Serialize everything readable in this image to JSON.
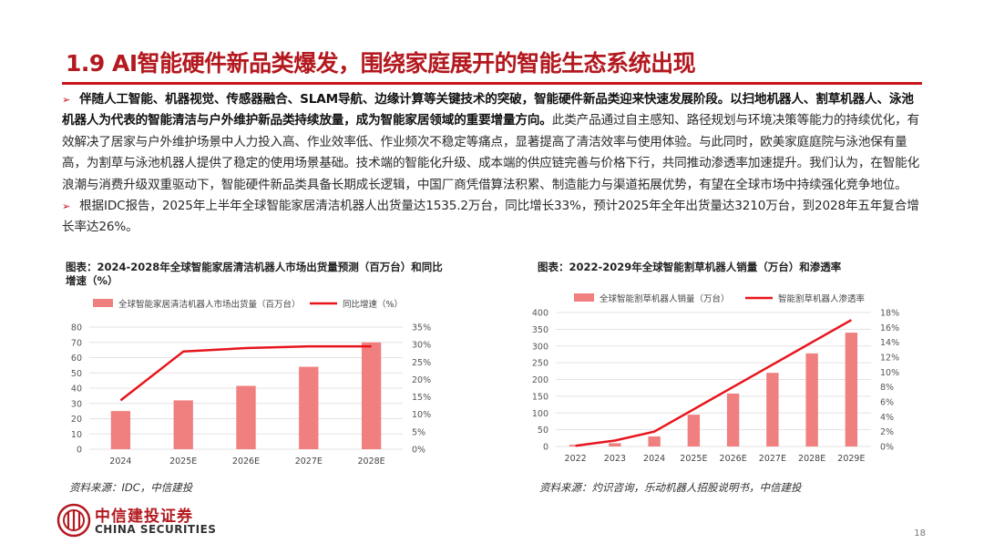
{
  "slide": {
    "title": "1.9 AI智能硬件新品类爆发，围绕家庭展开的智能生态系统出现",
    "page_number": "18",
    "accent_color": "#c8141b"
  },
  "bullets": [
    {
      "marker": "➢",
      "bold": "伴随人工智能、机器视觉、传感器融合、SLAM导航、边缘计算等关键技术的突破，智能硬件新品类迎来快速发展阶段。以扫地机器人、割草机器人、泳池机器人为代表的智能清洁与户外维护新品类持续放量，成为智能家居领域的重要增量方向。",
      "text": "此类产品通过自主感知、路径规划与环境决策等能力的持续优化，有效解决了居家与户外维护场景中人力投入高、作业效率低、作业频次不稳定等痛点，显著提高了清洁效率与使用体验。与此同时，欧美家庭庭院与泳池保有量高，为割草与泳池机器人提供了稳定的使用场景基础。技术端的智能化升级、成本端的供应链完善与价格下行，共同推动渗透率加速提升。我们认为，在智能化浪潮与消费升级双重驱动下，智能硬件新品类具备长期成长逻辑，中国厂商凭借算法积累、制造能力与渠道拓展优势，有望在全球市场中持续强化竞争地位。"
    },
    {
      "marker": "➢",
      "bold": "",
      "text": "根据IDC报告，2025年上半年全球智能家居清洁机器人出货量达1535.2万台，同比增长33%，预计2025年全年出货量达3210万台，到2028年五年复合增长率达26%。"
    }
  ],
  "chart_left_caption": {
    "title": "图表：2024-2028年全球智能家居清洁机器人市场出货量预测（百万台）和同比增速（%）",
    "source": "资料来源：IDC，中信建投"
  },
  "chart_right_caption": {
    "title": "图表：2022-2029年全球智能割草机器人销量（万台）和渗透率",
    "source": "资料来源：灼识咨询，乐动机器人招股说明书，中信建投"
  },
  "chart_data": [
    {
      "type": "bar",
      "title": "2024-2028年全球智能家居清洁机器人市场出货量预测（百万台）和同比增速（%）",
      "categories": [
        "2024",
        "2025E",
        "2026E",
        "2027E",
        "2028E"
      ],
      "series": [
        {
          "name": "全球智能家居清洁机器人市场出货量（百万台）",
          "kind": "bar",
          "axis": "left",
          "color": "#f08080",
          "values": [
            25,
            32,
            41.5,
            54,
            70
          ]
        },
        {
          "name": "同比增速（%）",
          "kind": "line",
          "axis": "right",
          "color": "#e8141c",
          "values": [
            14,
            28,
            29,
            29.5,
            29.5
          ]
        }
      ],
      "ylim_left": [
        0,
        80
      ],
      "yticks_left": [
        "0",
        "10",
        "20",
        "30",
        "40",
        "50",
        "60",
        "70",
        "80"
      ],
      "ylim_right": [
        0,
        35
      ],
      "yticks_right": [
        "0%",
        "5%",
        "10%",
        "15%",
        "20%",
        "25%",
        "30%",
        "35%"
      ],
      "grid": true,
      "legend_position": "top"
    },
    {
      "type": "bar",
      "title": "2022-2029年全球智能割草机器人销量（万台）和渗透率",
      "categories": [
        "2022",
        "2023",
        "2024",
        "2025E",
        "2026E",
        "2027E",
        "2028E",
        "2029E"
      ],
      "series": [
        {
          "name": "全球智能割草机器人销量（万台）",
          "kind": "bar",
          "axis": "left",
          "color": "#f08080",
          "values": [
            5,
            10,
            30,
            95,
            158,
            220,
            278,
            340
          ]
        },
        {
          "name": "智能割草机器人渗透率",
          "kind": "line",
          "axis": "right",
          "color": "#e8141c",
          "values": [
            0.1,
            0.8,
            2,
            5,
            8,
            11,
            14,
            17
          ]
        }
      ],
      "ylim_left": [
        0,
        400
      ],
      "yticks_left": [
        "0",
        "50",
        "100",
        "150",
        "200",
        "250",
        "300",
        "350",
        "400"
      ],
      "ylim_right": [
        0,
        18
      ],
      "yticks_right": [
        "0%",
        "2%",
        "4%",
        "6%",
        "8%",
        "10%",
        "12%",
        "14%",
        "16%",
        "18%"
      ],
      "grid": true,
      "legend_position": "top"
    }
  ],
  "logo": {
    "name_cn": "中信建投证券",
    "name_en": "CHINA SECURITIES"
  }
}
